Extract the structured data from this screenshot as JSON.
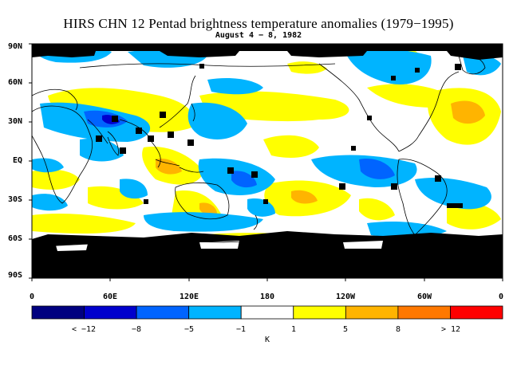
{
  "title": "HIRS CHN 12 Pentad brightness temperature anomalies (1979−1995)",
  "subtitle": "August 4 − 8, 1982",
  "lat_labels": [
    "90N",
    "60N",
    "30N",
    "EQ",
    "30S",
    "60S",
    "90S"
  ],
  "lat_values": [
    90,
    60,
    30,
    0,
    -30,
    -60,
    -90
  ],
  "lon_labels": [
    "0",
    "60E",
    "120E",
    "180",
    "120W",
    "60W",
    "0"
  ],
  "lon_values": [
    0,
    60,
    120,
    180,
    240,
    300,
    360
  ],
  "colorbar": {
    "labels": [
      "< −12",
      "−8",
      "−5",
      "−1",
      "1",
      "5",
      "8",
      "> 12"
    ],
    "unit": "K",
    "colors": [
      "#000080",
      "#0000cd",
      "#0064ff",
      "#00b4ff",
      "#ffffff",
      "#ffff00",
      "#ffb400",
      "#ff7800",
      "#ff0000"
    ]
  },
  "colors": {
    "no_data": "#000000",
    "coast": "#000000"
  }
}
